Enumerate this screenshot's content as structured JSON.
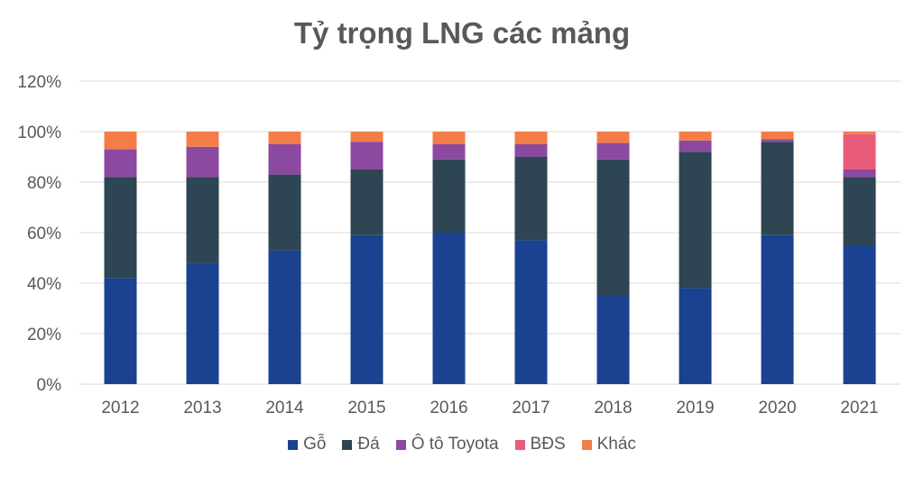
{
  "chart_data": {
    "type": "bar",
    "stacked": true,
    "title": "Tỷ trọng LNG các mảng",
    "xlabel": "",
    "ylabel": "",
    "ylim": [
      0,
      120
    ],
    "y_ticks": [
      "0%",
      "20%",
      "40%",
      "60%",
      "80%",
      "100%",
      "120%"
    ],
    "y_tick_values": [
      0,
      20,
      40,
      60,
      80,
      100,
      120
    ],
    "grid": true,
    "legend_position": "bottom",
    "categories": [
      "2012",
      "2013",
      "2014",
      "2015",
      "2016",
      "2017",
      "2018",
      "2019",
      "2020",
      "2021"
    ],
    "series": [
      {
        "name": "Gỗ",
        "color": "#1a4290",
        "values": [
          42,
          48,
          53,
          59,
          60,
          57,
          35,
          38,
          59,
          55
        ]
      },
      {
        "name": "Đá",
        "color": "#2e4553",
        "values": [
          40,
          34,
          30,
          26,
          29,
          33,
          54,
          54,
          37,
          27
        ]
      },
      {
        "name": "Ô tô Toyota",
        "color": "#8b49a0",
        "values": [
          11,
          12,
          12,
          11,
          6,
          5,
          6.5,
          4.5,
          1,
          3
        ]
      },
      {
        "name": "BĐS",
        "color": "#e85c7a",
        "values": [
          0,
          0,
          0,
          0,
          0,
          0,
          0,
          0,
          0,
          14
        ]
      },
      {
        "name": "Khác",
        "color": "#f47c48",
        "values": [
          7,
          6,
          5,
          4,
          5,
          5,
          4.5,
          3.5,
          3,
          1
        ]
      }
    ]
  }
}
